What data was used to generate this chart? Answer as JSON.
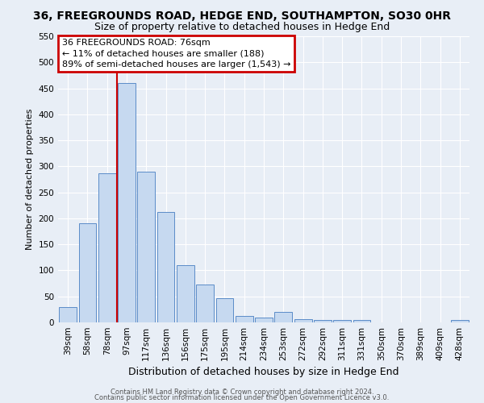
{
  "title": "36, FREEGROUNDS ROAD, HEDGE END, SOUTHAMPTON, SO30 0HR",
  "subtitle": "Size of property relative to detached houses in Hedge End",
  "xlabel": "Distribution of detached houses by size in Hedge End",
  "ylabel": "Number of detached properties",
  "categories": [
    "39sqm",
    "58sqm",
    "78sqm",
    "97sqm",
    "117sqm",
    "136sqm",
    "156sqm",
    "175sqm",
    "195sqm",
    "214sqm",
    "234sqm",
    "253sqm",
    "272sqm",
    "292sqm",
    "311sqm",
    "331sqm",
    "350sqm",
    "370sqm",
    "389sqm",
    "409sqm",
    "428sqm"
  ],
  "values": [
    30,
    190,
    287,
    460,
    290,
    212,
    110,
    73,
    47,
    12,
    10,
    20,
    6,
    4,
    4,
    4,
    0,
    0,
    0,
    0,
    5
  ],
  "bar_color": "#c6d9f0",
  "bar_edge_color": "#5b8cc8",
  "ylim": [
    0,
    550
  ],
  "yticks": [
    0,
    50,
    100,
    150,
    200,
    250,
    300,
    350,
    400,
    450,
    500,
    550
  ],
  "vline_x_idx": 3,
  "vline_color": "#cc0000",
  "annotation_title": "36 FREEGROUNDS ROAD: 76sqm",
  "annotation_line1": "← 11% of detached houses are smaller (188)",
  "annotation_line2": "89% of semi-detached houses are larger (1,543) →",
  "annotation_box_edgecolor": "#cc0000",
  "footer1": "Contains HM Land Registry data © Crown copyright and database right 2024.",
  "footer2": "Contains public sector information licensed under the Open Government Licence v3.0.",
  "background_color": "#e8eef6",
  "grid_color": "#ffffff",
  "title_fontsize": 10,
  "subtitle_fontsize": 9,
  "ylabel_fontsize": 8,
  "xlabel_fontsize": 9,
  "tick_fontsize": 7.5,
  "footer_fontsize": 6,
  "annotation_fontsize": 8
}
